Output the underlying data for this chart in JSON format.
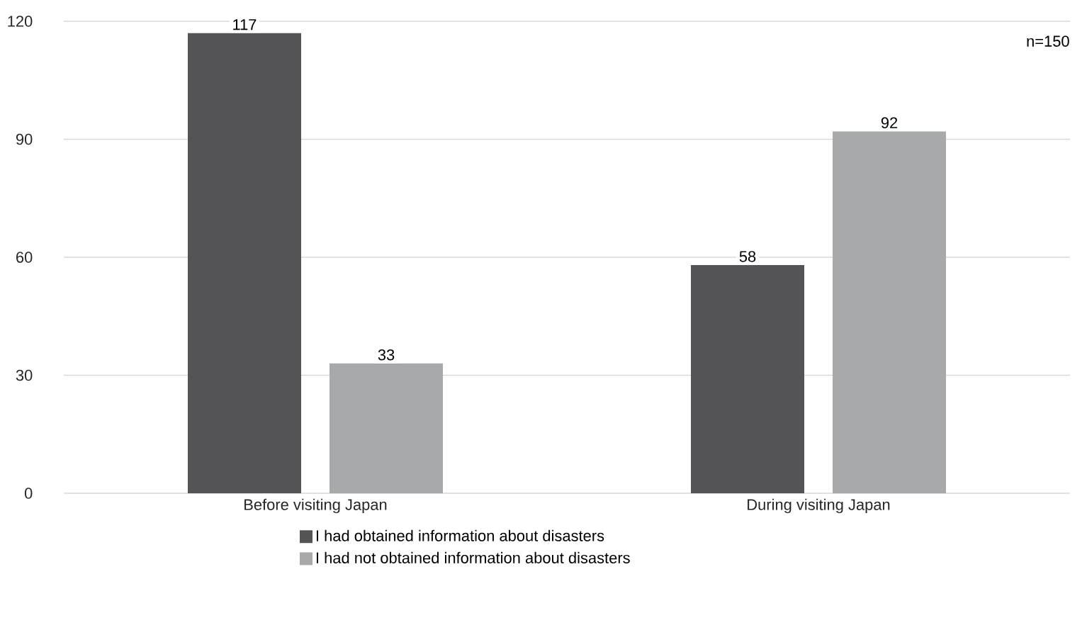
{
  "chart_data": {
    "type": "bar",
    "categories": [
      "Before visiting Japan",
      "During visiting Japan"
    ],
    "series": [
      {
        "name": "I had obtained information about disasters",
        "color": "#545456",
        "values": [
          117,
          58
        ]
      },
      {
        "name": "I had not obtained information about disasters",
        "color": "#a8a9aa",
        "values": [
          33,
          92
        ]
      }
    ],
    "ylim": [
      0,
      120
    ],
    "yticks": [
      0,
      30,
      60,
      90,
      120
    ],
    "grid": "y",
    "legend": "bottom",
    "data_labels": true,
    "annotations": [
      "n=150"
    ]
  }
}
